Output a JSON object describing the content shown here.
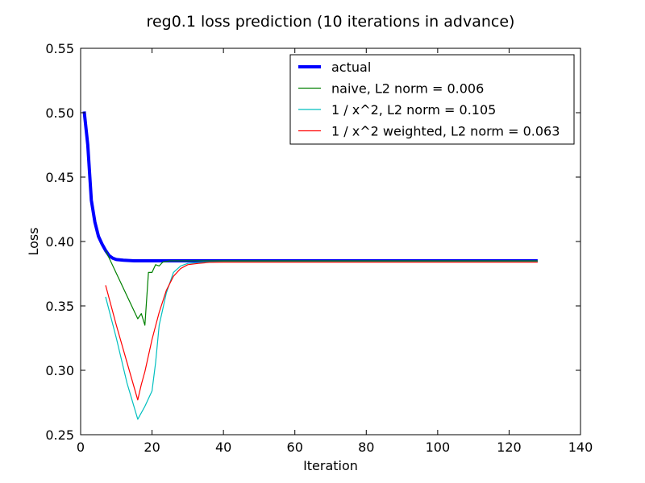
{
  "chart_data": {
    "type": "line",
    "title": "reg0.1 loss prediction (10 iterations in advance)",
    "xlabel": "Iteration",
    "ylabel": "Loss",
    "xlim": [
      0,
      140
    ],
    "ylim": [
      0.25,
      0.55
    ],
    "xticks": [
      0,
      20,
      40,
      60,
      80,
      100,
      120,
      140
    ],
    "xtick_labels": [
      "0",
      "20",
      "40",
      "60",
      "80",
      "100",
      "120",
      "140"
    ],
    "yticks": [
      0.25,
      0.3,
      0.35,
      0.4,
      0.45,
      0.5,
      0.55
    ],
    "ytick_labels": [
      "0.25",
      "0.30",
      "0.35",
      "0.40",
      "0.45",
      "0.50",
      "0.55"
    ],
    "grid": false,
    "legend_position": "top-right",
    "series": [
      {
        "name": "actual",
        "color": "#0000ff",
        "points": [
          [
            1,
            0.501
          ],
          [
            2,
            0.475
          ],
          [
            3,
            0.432
          ],
          [
            4,
            0.415
          ],
          [
            5,
            0.404
          ],
          [
            6,
            0.398
          ],
          [
            7,
            0.393
          ],
          [
            8,
            0.389
          ],
          [
            9,
            0.387
          ],
          [
            10,
            0.386
          ],
          [
            12,
            0.3855
          ],
          [
            15,
            0.385
          ],
          [
            20,
            0.385
          ],
          [
            30,
            0.385
          ],
          [
            60,
            0.385
          ],
          [
            100,
            0.385
          ],
          [
            128,
            0.385
          ]
        ]
      },
      {
        "name": "naive, L2 norm = 0.006",
        "color": "#008000",
        "points": [
          [
            7,
            0.393
          ],
          [
            16,
            0.34
          ],
          [
            17,
            0.344
          ],
          [
            18,
            0.335
          ],
          [
            19,
            0.376
          ],
          [
            20,
            0.376
          ],
          [
            21,
            0.382
          ],
          [
            22,
            0.381
          ],
          [
            23,
            0.384
          ],
          [
            25,
            0.385
          ],
          [
            30,
            0.385
          ],
          [
            60,
            0.385
          ],
          [
            100,
            0.385
          ],
          [
            128,
            0.385
          ]
        ]
      },
      {
        "name": "1 / x^2, L2 norm = 0.105",
        "color": "#00bfbf",
        "points": [
          [
            7,
            0.357
          ],
          [
            10,
            0.325
          ],
          [
            13,
            0.29
          ],
          [
            16,
            0.262
          ],
          [
            18,
            0.272
          ],
          [
            20,
            0.284
          ],
          [
            21,
            0.306
          ],
          [
            22,
            0.335
          ],
          [
            24,
            0.36
          ],
          [
            26,
            0.376
          ],
          [
            28,
            0.381
          ],
          [
            30,
            0.383
          ],
          [
            35,
            0.384
          ],
          [
            40,
            0.3842
          ],
          [
            60,
            0.3842
          ],
          [
            100,
            0.3842
          ],
          [
            128,
            0.3842
          ]
        ]
      },
      {
        "name": "1 / x^2 weighted, L2 norm = 0.063",
        "color": "#ff0000",
        "points": [
          [
            7,
            0.366
          ],
          [
            10,
            0.335
          ],
          [
            13,
            0.306
          ],
          [
            16,
            0.277
          ],
          [
            17,
            0.289
          ],
          [
            18,
            0.299
          ],
          [
            20,
            0.324
          ],
          [
            22,
            0.345
          ],
          [
            24,
            0.362
          ],
          [
            26,
            0.373
          ],
          [
            28,
            0.379
          ],
          [
            30,
            0.382
          ],
          [
            33,
            0.383
          ],
          [
            36,
            0.3838
          ],
          [
            40,
            0.384
          ],
          [
            60,
            0.384
          ],
          [
            100,
            0.384
          ],
          [
            128,
            0.384
          ]
        ]
      }
    ]
  }
}
